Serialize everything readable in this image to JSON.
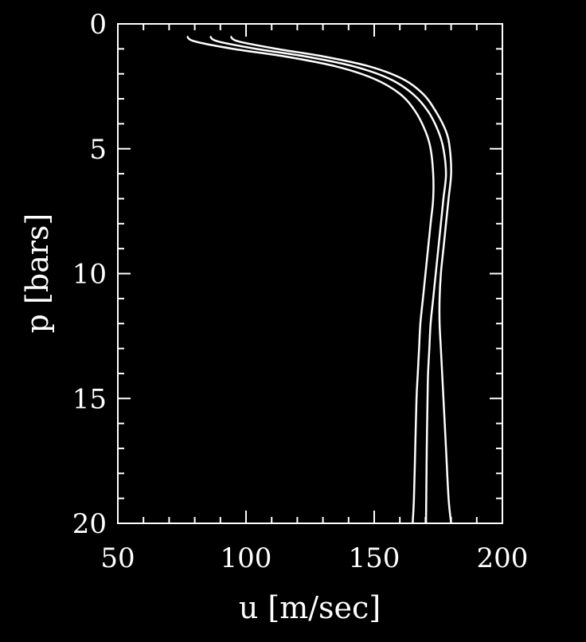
{
  "chart_data": {
    "type": "line",
    "title": "",
    "xlabel": "u [m/sec]",
    "ylabel": "p [bars]",
    "xlim": [
      50,
      200
    ],
    "ylim": [
      20,
      0
    ],
    "y_axis_inverted": true,
    "grid": false,
    "background": "#000000",
    "line_color": "#ffffff",
    "x_ticks": [
      50,
      100,
      150,
      200
    ],
    "y_ticks": [
      0,
      5,
      10,
      15,
      20
    ],
    "x_minor_step": 10,
    "y_minor_step": 1,
    "series": [
      {
        "x": [
          77,
          80,
          95,
          115,
          135,
          150,
          160,
          166,
          170,
          172,
          173,
          173,
          172,
          171,
          170,
          169,
          168,
          167.5,
          167,
          166.5,
          166,
          165.5,
          165
        ],
        "y": [
          0.5,
          0.7,
          1.0,
          1.3,
          1.7,
          2.2,
          2.8,
          3.5,
          4.3,
          5.0,
          6.0,
          7.0,
          8.0,
          9.0,
          10.0,
          11.0,
          12.0,
          13.0,
          14.0,
          15.0,
          17.0,
          19.0,
          20.0
        ]
      },
      {
        "x": [
          86,
          89,
          104,
          123,
          142,
          156,
          165,
          171,
          175,
          177,
          178,
          177,
          176,
          175,
          174,
          173,
          172,
          171.5,
          171,
          170.8,
          170.5,
          170.3,
          170.2
        ],
        "y": [
          0.5,
          0.7,
          1.0,
          1.3,
          1.7,
          2.2,
          2.8,
          3.5,
          4.3,
          5.0,
          6.0,
          7.0,
          8.0,
          9.0,
          10.0,
          11.0,
          12.0,
          13.0,
          14.0,
          15.0,
          17.0,
          19.0,
          20.0
        ]
      },
      {
        "x": [
          94,
          97,
          112,
          130,
          148,
          161,
          169,
          174,
          178,
          179.5,
          180,
          179,
          178,
          177,
          176,
          175.5,
          175.5,
          176,
          176.5,
          177,
          178,
          179,
          180
        ],
        "y": [
          0.5,
          0.7,
          1.0,
          1.3,
          1.7,
          2.2,
          2.8,
          3.5,
          4.3,
          5.0,
          6.0,
          7.0,
          8.0,
          9.0,
          10.0,
          11.0,
          12.0,
          13.0,
          14.0,
          15.0,
          17.0,
          19.0,
          20.0
        ]
      }
    ]
  }
}
